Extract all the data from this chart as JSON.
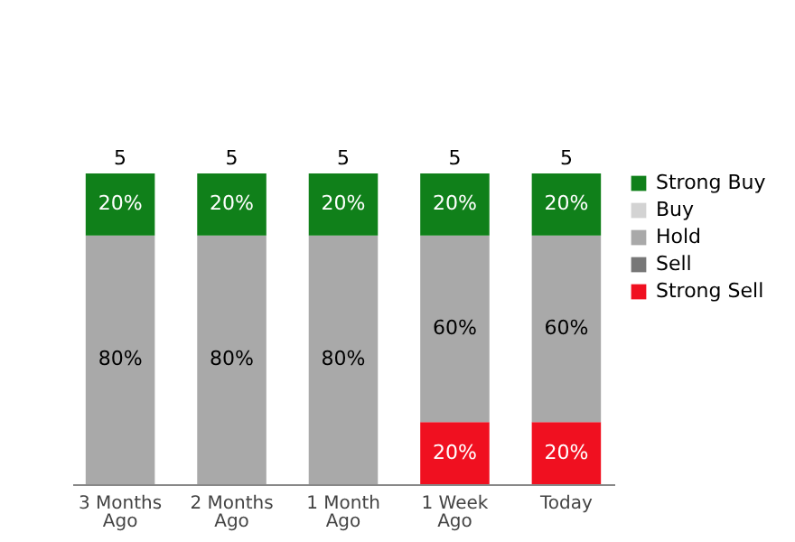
{
  "chart_data": {
    "type": "bar",
    "stacked": true,
    "categories": [
      "3 Months Ago",
      "2 Months Ago",
      "1 Month Ago",
      "1 Week Ago",
      "Today"
    ],
    "series": [
      {
        "name": "Strong Sell",
        "color": "#f01020",
        "values": [
          0,
          0,
          0,
          20,
          20
        ],
        "value_labels": [
          null,
          null,
          null,
          "20%",
          "20%"
        ]
      },
      {
        "name": "Sell",
        "color": "#777777",
        "values": [
          0,
          0,
          0,
          0,
          0
        ],
        "value_labels": [
          null,
          null,
          null,
          null,
          null
        ]
      },
      {
        "name": "Hold",
        "color": "#a9a9a9",
        "values": [
          80,
          80,
          80,
          60,
          60
        ],
        "value_labels": [
          "80%",
          "80%",
          "80%",
          "60%",
          "60%"
        ]
      },
      {
        "name": "Buy",
        "color": "#d3d3d3",
        "values": [
          0,
          0,
          0,
          0,
          0
        ],
        "value_labels": [
          null,
          null,
          null,
          null,
          null
        ]
      },
      {
        "name": "Strong Buy",
        "color": "#10801a",
        "values": [
          20,
          20,
          20,
          20,
          20
        ],
        "value_labels": [
          "20%",
          "20%",
          "20%",
          "20%",
          "20%"
        ]
      }
    ],
    "annotations": [
      {
        "text": "5",
        "x": "3 Months Ago",
        "y": 100
      },
      {
        "text": "5",
        "x": "2 Months Ago",
        "y": 100
      },
      {
        "text": "5",
        "x": "1 Month Ago",
        "y": 100
      },
      {
        "text": "5",
        "x": "1 Week Ago",
        "y": 100
      },
      {
        "text": "5",
        "x": "Today",
        "y": 100
      }
    ],
    "ylim": [
      0,
      100
    ],
    "tick_labels": "x",
    "legend": "right"
  }
}
